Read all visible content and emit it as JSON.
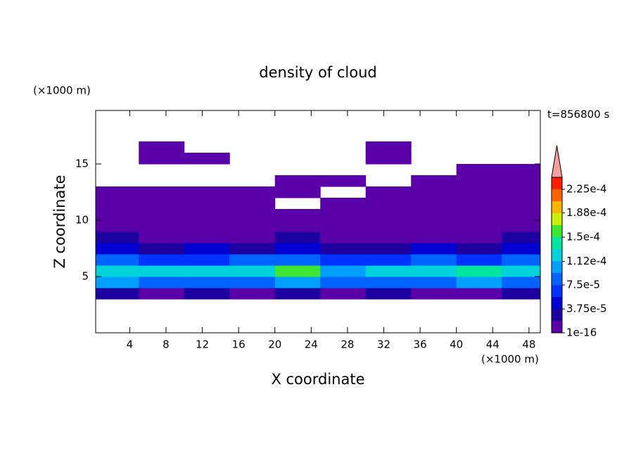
{
  "chart_data": {
    "type": "contour",
    "title": "density of cloud",
    "time_label": "t=856800 s",
    "x_label": "X coordinate",
    "y_label": "Z coordinate",
    "x_unit": "(×1000 m)",
    "y_unit": "(×1000 m)",
    "xlim": [
      0.25,
      49.25
    ],
    "ylim": [
      0,
      19.75
    ],
    "xticks": [
      4,
      8,
      12,
      16,
      20,
      24,
      28,
      32,
      36,
      40,
      44,
      48
    ],
    "yticks": [
      5,
      10,
      15
    ],
    "x": [
      2.5,
      7.5,
      12.5,
      17.5,
      22.5,
      27.5,
      32.5,
      37.5,
      42.5,
      47.5
    ],
    "y": [
      3.5,
      4.5,
      5.5,
      6.5,
      7.5,
      8.5,
      9.5,
      10.5,
      11.5,
      12.5,
      13.5,
      14.5,
      15.5,
      16.5
    ],
    "z": [
      [
        2e-05,
        1e-06,
        2e-05,
        1e-06,
        2e-05,
        1e-06,
        2e-05,
        1e-06,
        1e-06,
        2e-05
      ],
      [
        0.0001,
        8e-05,
        9e-05,
        8e-05,
        0.0001,
        8e-05,
        9e-05,
        8e-05,
        0.0001,
        8e-05
      ],
      [
        0.00013,
        0.00012,
        0.000115,
        0.000125,
        0.000155,
        0.0001,
        0.00013,
        0.00012,
        0.00014,
        0.00012
      ],
      [
        8e-05,
        6e-05,
        6e-05,
        8e-05,
        8e-05,
        6e-05,
        6e-05,
        8e-05,
        6e-05,
        8e-05
      ],
      [
        4e-05,
        2e-05,
        4e-05,
        2e-05,
        4e-05,
        2e-05,
        2e-05,
        4e-05,
        2e-05,
        4e-05
      ],
      [
        2e-05,
        1e-06,
        1e-06,
        1e-06,
        2e-05,
        1e-06,
        1e-06,
        1e-06,
        1e-06,
        2e-05
      ],
      [
        1e-06,
        1e-06,
        1e-06,
        1e-06,
        1e-06,
        1e-06,
        1e-06,
        1e-06,
        1e-06,
        1e-06
      ],
      [
        1e-06,
        1e-06,
        1e-06,
        1e-06,
        1e-06,
        1e-06,
        1e-06,
        1e-06,
        1e-06,
        1e-06
      ],
      [
        1e-06,
        1e-06,
        1e-06,
        1e-06,
        null,
        1e-06,
        1e-06,
        1e-06,
        1e-06,
        1e-06
      ],
      [
        1e-06,
        1e-06,
        1e-06,
        1e-06,
        1e-06,
        null,
        1e-06,
        1e-06,
        1e-06,
        1e-06
      ],
      [
        null,
        null,
        null,
        null,
        1e-06,
        1e-06,
        null,
        1e-06,
        1e-06,
        1e-06
      ],
      [
        null,
        null,
        null,
        null,
        null,
        null,
        null,
        null,
        1e-06,
        1e-06
      ],
      [
        null,
        1e-06,
        1e-06,
        null,
        null,
        null,
        1e-06,
        null,
        null,
        null
      ],
      [
        null,
        1e-06,
        null,
        null,
        null,
        null,
        1e-06,
        null,
        null,
        null
      ]
    ],
    "colorbar_ticks": [
      {
        "value": 1e-16,
        "label": "1e-16"
      },
      {
        "value": 3.75e-05,
        "label": "3.75e-5"
      },
      {
        "value": 7.5e-05,
        "label": "7.5e-5"
      },
      {
        "value": 0.000112,
        "label": "1.12e-4"
      },
      {
        "value": 0.00015,
        "label": "1.5e-4"
      },
      {
        "value": 0.000188,
        "label": "1.88e-4"
      },
      {
        "value": 0.000225,
        "label": "2.25e-4"
      }
    ],
    "colors": [
      "#5a00a8",
      "#1e00a0",
      "#0000d2",
      "#0032ff",
      "#0064ff",
      "#00a0ff",
      "#00d2dc",
      "#00e6a0",
      "#3ce632",
      "#c8f000",
      "#ffb400",
      "#ff6400",
      "#ff1e00"
    ],
    "extend_color": "#f5a0a0"
  }
}
